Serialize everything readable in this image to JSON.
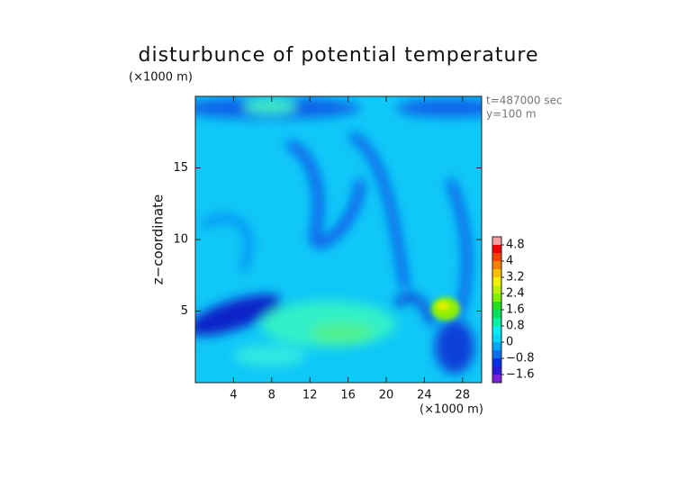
{
  "chart_data": {
    "type": "contour",
    "title": "disturbunce of potential temperature",
    "y_unit": "(×1000 m)",
    "x_unit": "(×1000 m)",
    "ylabel": "z−coordinate",
    "annotations": [
      "t=487000 sec",
      "y=100 m"
    ],
    "xlim": [
      0,
      30
    ],
    "xticks": [
      4,
      8,
      12,
      16,
      20,
      24,
      28
    ],
    "ylim": [
      0,
      20
    ],
    "yticks": [
      5,
      10,
      15
    ],
    "levels": [
      -2.0,
      -1.6,
      -1.2,
      -0.8,
      -0.4,
      0,
      0.4,
      0.8,
      1.2,
      1.6,
      2.0,
      2.4,
      2.8,
      3.2,
      3.6,
      4.0,
      4.4,
      4.8,
      5.2
    ],
    "colors": [
      "#7a1ee0",
      "#2a1adc",
      "#0a30e8",
      "#0a70f0",
      "#00a8f8",
      "#00d8ff",
      "#00f0f0",
      "#00f0a0",
      "#00e060",
      "#20e020",
      "#80f000",
      "#c0f000",
      "#f0f000",
      "#f8c000",
      "#f88000",
      "#f84000",
      "#f00000",
      "#f8a0a0"
    ],
    "cbticks": [
      {
        "value": 4.8,
        "label": "4.8"
      },
      4,
      {
        "value": 3.2,
        "label": "3.2"
      },
      {
        "value": 2.4,
        "label": "2.4"
      },
      {
        "value": 1.6,
        "label": "1.6"
      },
      {
        "value": 0.8,
        "label": "0.8"
      },
      0,
      {
        "value": -0.8,
        "label": "−0.8"
      },
      {
        "value": -1.6,
        "label": "−1.6"
      }
    ]
  }
}
